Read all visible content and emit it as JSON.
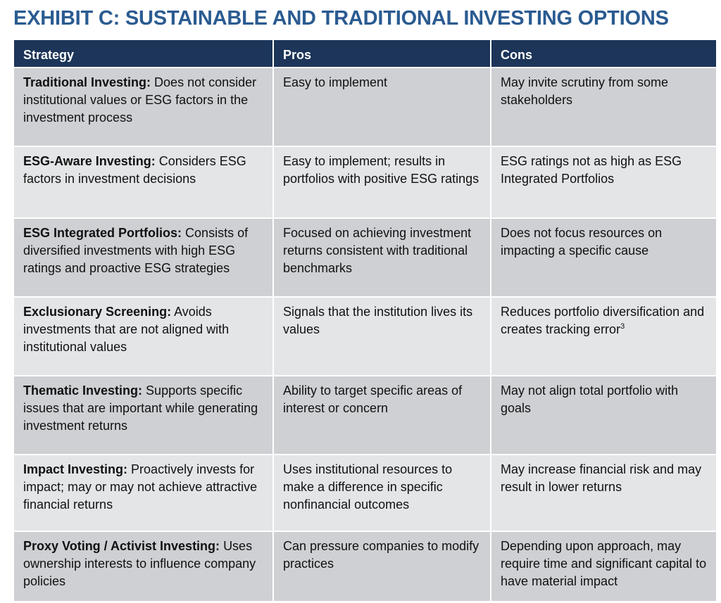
{
  "title": "EXHIBIT C: SUSTAINABLE AND TRADITIONAL INVESTING OPTIONS",
  "headers": [
    "Strategy",
    "Pros",
    "Cons"
  ],
  "colors": {
    "title": "#2b5b91",
    "header_bg": "#1c3559",
    "row_dark": "#cfd0d4",
    "row_light": "#e4e5e7"
  },
  "rows": [
    {
      "name": "Traditional Investing:",
      "desc": "Does not consider institutional values or ESG factors in the investment process",
      "pros": "Easy to implement",
      "cons": "May invite scrutiny from some stakeholders",
      "sup": ""
    },
    {
      "name": "ESG-Aware Investing:",
      "desc": "Considers ESG factors in investment decisions",
      "pros": "Easy to implement; results in portfolios with positive ESG ratings",
      "cons": "ESG ratings not as high as ESG Integrated Portfolios",
      "sup": ""
    },
    {
      "name": "ESG Integrated Portfolios:",
      "desc": "Consists of diversified investments with high ESG ratings and proactive ESG strategies",
      "pros": "Focused on achieving investment returns consistent with traditional benchmarks",
      "cons": "Does not focus resources on impacting a specific cause",
      "sup": ""
    },
    {
      "name": "Exclusionary Screening:",
      "desc": "Avoids investments that are not aligned with institutional values",
      "pros": "Signals that the institution lives its values",
      "cons": "Reduces portfolio diversification and creates tracking error",
      "sup": "3"
    },
    {
      "name": "Thematic Investing:",
      "desc": "Supports specific issues that are important while generating investment returns",
      "pros": "Ability to target specific areas of interest or concern",
      "cons": "May not align total portfolio with goals",
      "sup": ""
    },
    {
      "name": "Impact Investing:",
      "desc": "Proactively invests for impact; may or may not achieve attractive financial returns",
      "pros": "Uses institutional resources to make a difference in specific nonfinancial outcomes",
      "cons": "May increase financial risk and may result in lower returns",
      "sup": ""
    },
    {
      "name": "Proxy Voting / Activist Investing:",
      "desc": "Uses ownership interests to influence company policies",
      "pros": "Can pressure companies to modify practices",
      "cons": "Depending upon approach, may require time and significant capital to have material impact",
      "sup": ""
    }
  ]
}
